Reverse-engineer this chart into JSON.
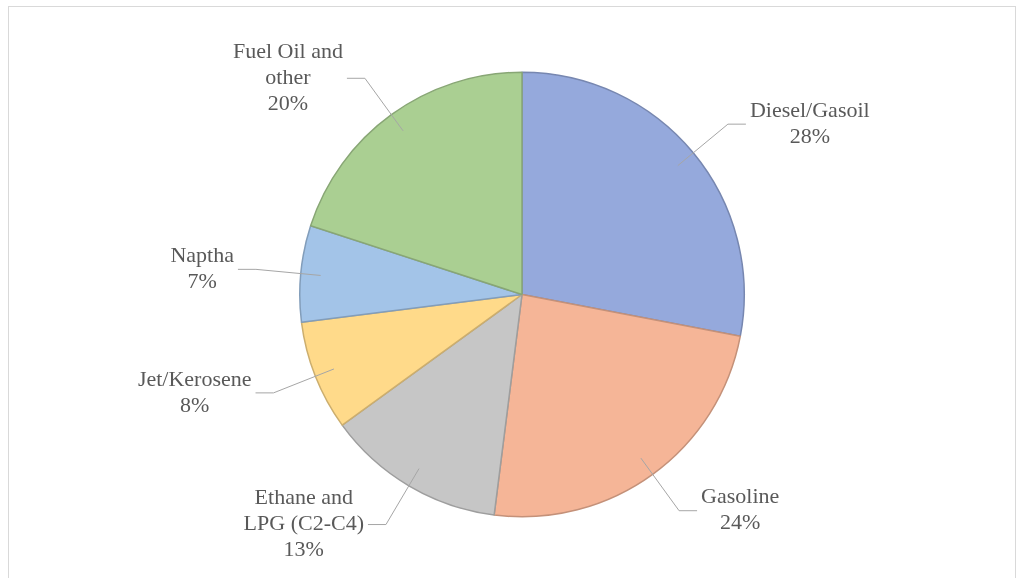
{
  "chart_data": {
    "type": "pie",
    "categories": [
      "Diesel/Gasoil",
      "Gasoline",
      "Ethane and LPG (C2-C4)",
      "Jet/Kerosene",
      "Naptha",
      "Fuel Oil and other"
    ],
    "values": [
      28,
      24,
      13,
      8,
      7,
      20
    ],
    "value_labels": [
      "28%",
      "24%",
      "13%",
      "8%",
      "7%",
      "20%"
    ],
    "colors": [
      "#95a9dc",
      "#f5b597",
      "#c6c6c6",
      "#ffda8a",
      "#a3c4e8",
      "#aacf92"
    ],
    "legend": false
  }
}
